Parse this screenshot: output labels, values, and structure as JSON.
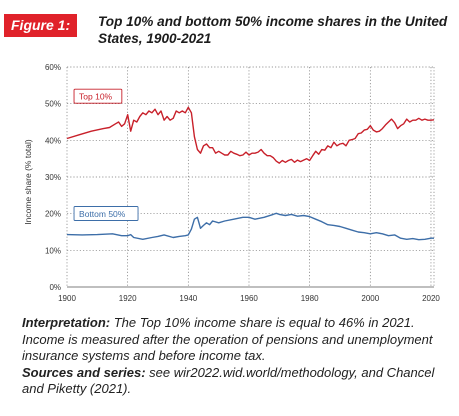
{
  "figure": {
    "badge": "Figure 1:",
    "title": "Top 10% and bottom 50% income shares in the United States, 1900-2021"
  },
  "chart_data": {
    "type": "line",
    "title": "Top 10% and bottom 50% income shares in the United States, 1900-2021",
    "xlabel": "",
    "ylabel": "Income share (% total)",
    "xlim": [
      1900,
      2021
    ],
    "ylim": [
      0,
      60
    ],
    "xticks": [
      "1900",
      "1920",
      "1940",
      "1960",
      "1980",
      "2000",
      "2020"
    ],
    "yticks": [
      "0%",
      "10%",
      "20%",
      "30%",
      "40%",
      "50%",
      "60%"
    ],
    "grid": true,
    "series": [
      {
        "name": "Top 10%",
        "color": "#c8202a",
        "x": [
          1900,
          1904,
          1908,
          1912,
          1914,
          1916,
          1917,
          1918,
          1919,
          1920,
          1921,
          1922,
          1923,
          1924,
          1925,
          1926,
          1927,
          1928,
          1929,
          1930,
          1931,
          1932,
          1933,
          1934,
          1935,
          1936,
          1937,
          1938,
          1939,
          1940,
          1941,
          1942,
          1943,
          1944,
          1945,
          1946,
          1947,
          1948,
          1949,
          1950,
          1951,
          1952,
          1953,
          1954,
          1955,
          1956,
          1957,
          1958,
          1959,
          1960,
          1961,
          1962,
          1963,
          1964,
          1965,
          1966,
          1967,
          1968,
          1969,
          1970,
          1971,
          1972,
          1973,
          1974,
          1975,
          1976,
          1977,
          1978,
          1979,
          1980,
          1981,
          1982,
          1983,
          1984,
          1985,
          1986,
          1987,
          1988,
          1989,
          1990,
          1991,
          1992,
          1993,
          1994,
          1995,
          1996,
          1997,
          1998,
          1999,
          2000,
          2001,
          2002,
          2003,
          2004,
          2005,
          2006,
          2007,
          2008,
          2009,
          2010,
          2011,
          2012,
          2013,
          2014,
          2015,
          2016,
          2017,
          2018,
          2019,
          2020,
          2021
        ],
        "values": [
          40.5,
          41.5,
          42.5,
          43.2,
          43.5,
          44.5,
          45.0,
          43.8,
          44.5,
          47.0,
          42.5,
          45.5,
          45.0,
          46.5,
          47.5,
          47.0,
          48.0,
          47.5,
          48.5,
          47.0,
          48.0,
          45.5,
          46.5,
          45.5,
          46.0,
          48.0,
          47.5,
          48.0,
          47.5,
          49.0,
          47.5,
          41.0,
          37.5,
          36.5,
          38.5,
          39.0,
          38.0,
          38.0,
          36.5,
          37.0,
          36.5,
          36.0,
          36.0,
          37.0,
          36.5,
          36.2,
          35.8,
          36.0,
          36.8,
          36.0,
          36.5,
          36.5,
          36.8,
          37.5,
          36.5,
          35.8,
          35.8,
          35.3,
          34.3,
          33.8,
          34.5,
          34.0,
          34.5,
          34.8,
          34.0,
          34.6,
          34.2,
          34.6,
          35.0,
          34.5,
          35.8,
          37.0,
          36.2,
          37.5,
          37.3,
          38.5,
          38.0,
          39.5,
          38.5,
          39.0,
          39.2,
          38.5,
          40.0,
          40.2,
          40.5,
          41.8,
          42.0,
          42.8,
          43.0,
          44.0,
          42.8,
          42.3,
          42.5,
          43.2,
          44.2,
          45.0,
          45.8,
          44.8,
          43.2,
          44.0,
          44.5,
          45.8,
          45.0,
          45.5,
          45.5,
          46.0,
          45.5,
          45.8,
          45.5,
          45.5,
          45.6
        ]
      },
      {
        "name": "Bottom 50%",
        "color": "#3d6ea8",
        "x": [
          1900,
          1905,
          1910,
          1915,
          1918,
          1920,
          1921,
          1922,
          1925,
          1928,
          1930,
          1932,
          1935,
          1937,
          1939,
          1940,
          1941,
          1942,
          1943,
          1944,
          1945,
          1946,
          1947,
          1948,
          1950,
          1952,
          1955,
          1958,
          1960,
          1962,
          1965,
          1968,
          1969,
          1970,
          1972,
          1974,
          1976,
          1978,
          1980,
          1982,
          1984,
          1986,
          1988,
          1990,
          1992,
          1994,
          1996,
          1998,
          2000,
          2002,
          2004,
          2006,
          2008,
          2010,
          2012,
          2014,
          2016,
          2018,
          2020,
          2021
        ],
        "values": [
          14.3,
          14.2,
          14.3,
          14.5,
          14.0,
          14.0,
          14.3,
          13.5,
          13.0,
          13.5,
          13.8,
          14.2,
          13.5,
          13.8,
          14.0,
          14.2,
          15.8,
          18.5,
          19.0,
          16.0,
          16.8,
          17.5,
          17.0,
          18.0,
          17.5,
          18.0,
          18.5,
          19.0,
          19.0,
          18.5,
          19.0,
          19.8,
          20.1,
          19.8,
          19.5,
          19.8,
          19.3,
          19.5,
          19.2,
          18.5,
          17.8,
          17.0,
          16.8,
          16.5,
          16.0,
          15.5,
          15.0,
          14.8,
          14.5,
          14.8,
          14.5,
          14.0,
          14.2,
          13.3,
          13.0,
          13.2,
          12.9,
          13.0,
          13.3,
          13.3
        ]
      }
    ],
    "annotations": [
      "Top 10%",
      "Bottom 50%"
    ]
  },
  "notes": {
    "interpretation_label": "Interpretation:",
    "interpretation_text": " The Top 10% income share is equal to 46% in 2021. Income is measured after the operation of pensions and unemployment insurance systems and before income tax.",
    "sources_label": "Sources and series:",
    "sources_text": " see wir2022.wid.world/methodology, and Chancel and Piketty (2021)."
  }
}
